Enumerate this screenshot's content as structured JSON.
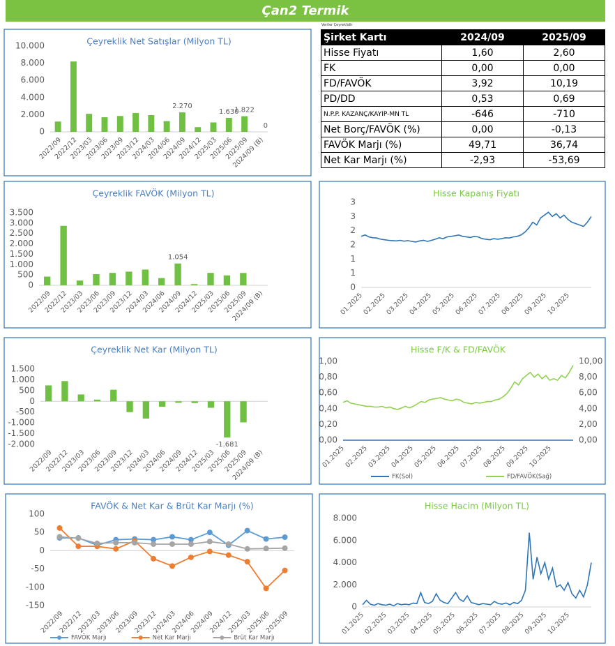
{
  "header": {
    "title": "Çan2 Termik"
  },
  "table": {
    "note": "Veriler Çeyreklidir",
    "columns": [
      "Şirket Kartı",
      "2024/09",
      "2025/09"
    ],
    "rows": [
      [
        "Hisse Fiyatı",
        "1,60",
        "2,60"
      ],
      [
        "FK",
        "0,00",
        "0,00"
      ],
      [
        "FD/FAVÖK",
        "3,92",
        "10,19"
      ],
      [
        "PD/DD",
        "0,53",
        "0,69"
      ],
      [
        "N.P.P. KAZANÇ/KAYIP-MN TL",
        "-646",
        "-710"
      ],
      [
        "Net Borç/FAVÖK (%)",
        "0,00",
        "-0,13"
      ],
      [
        "FAVÖK Marjı (%)",
        "49,71",
        "36,74"
      ],
      [
        "Net Kar Marjı (%)",
        "-2,93",
        "-53,69"
      ]
    ]
  },
  "chart_data": [
    {
      "type": "bar",
      "title": "Çeyreklik Net Satışlar (Milyon TL)",
      "color": "#70c043",
      "categories": [
        "2022/09",
        "2022/12",
        "2023/03",
        "2023/06",
        "2023/09",
        "2023/12",
        "2024/03",
        "2024/06",
        "2024/09",
        "2024/12",
        "2025/03",
        "2025/06",
        "2025/09",
        "2024/09 (B)"
      ],
      "values": [
        1200,
        8200,
        2100,
        1700,
        1850,
        2200,
        1950,
        1250,
        2270,
        550,
        1100,
        1630,
        1822,
        0
      ],
      "value_labels": [
        null,
        null,
        null,
        null,
        null,
        null,
        null,
        null,
        "2.270",
        null,
        null,
        "1.630",
        "1.822",
        "0"
      ],
      "ylim": [
        0,
        10000
      ],
      "yticks": [
        0,
        {
          "value": 2000,
          "label": "2.000"
        },
        {
          "value": 4000,
          "label": "4.000"
        },
        {
          "value": 6000,
          "label": "6.000"
        },
        {
          "value": 8000,
          "label": "8.000"
        },
        {
          "value": 10000,
          "label": "10.000"
        }
      ]
    },
    {
      "type": "bar",
      "title": "Çeyreklik FAVÖK (Milyon TL)",
      "color": "#70c043",
      "categories": [
        "2022/09",
        "2022/12",
        "2023/03",
        "2023/06",
        "2023/09",
        "2023/12",
        "2024/03",
        "2024/06",
        "2024/09",
        "2024/12",
        "2025/03",
        "2025/06",
        "2025/09",
        "2024/09 (B)"
      ],
      "values": [
        420,
        2870,
        230,
        540,
        600,
        660,
        760,
        350,
        1054,
        60,
        600,
        479,
        597,
        0
      ],
      "value_labels": [
        null,
        null,
        null,
        null,
        null,
        null,
        null,
        null,
        "1.054",
        null,
        null,
        null,
        null,
        null
      ],
      "ylim": [
        0,
        3500
      ],
      "yticks": [
        0,
        500,
        {
          "value": 1000,
          "label": "1.000"
        },
        {
          "value": 1500,
          "label": "1.500"
        },
        {
          "value": 2000,
          "label": "2.000"
        },
        {
          "value": 2500,
          "label": "2.500"
        },
        {
          "value": 3000,
          "label": "3.000"
        },
        {
          "value": 3500,
          "label": "3.500"
        }
      ]
    },
    {
      "type": "bar",
      "title": "Çeyreklik Net Kar (Milyon TL)",
      "color": "#70c043",
      "categories": [
        "2022/09",
        "2022/12",
        "2023/03",
        "2023/06",
        "2023/09",
        "2023/12",
        "2024/03",
        "2024/06",
        "2024/09",
        "2024/12",
        "2025/03",
        "2025/06",
        "2025/09",
        "2024/09 (B)"
      ],
      "values": [
        740,
        940,
        320,
        80,
        540,
        -500,
        -800,
        -250,
        -67,
        -80,
        -300,
        -1681,
        -978,
        0
      ],
      "value_labels": [
        null,
        null,
        null,
        null,
        null,
        null,
        null,
        null,
        null,
        null,
        null,
        "-1.681",
        null,
        null
      ],
      "ylim": [
        -2000,
        1500
      ],
      "yticks": [
        {
          "value": -2000,
          "label": "-2.000"
        },
        {
          "value": -1500,
          "label": "-1.500"
        },
        {
          "value": -1000,
          "label": "-1.000"
        },
        -500,
        0,
        500,
        {
          "value": 1000,
          "label": "1.000"
        },
        {
          "value": 1500,
          "label": "1.500"
        }
      ]
    },
    {
      "type": "line",
      "title": "Hisse Kapanış Fiyatı",
      "xtick_labels": [
        "01.2025",
        "02.2025",
        "03.2025",
        "04.2025",
        "05.2025",
        "06.2025",
        "07.2025",
        "08.2025",
        "09.2025",
        "10.2025"
      ],
      "series": [
        {
          "name": "Hisse Fiyatı",
          "color": "#2e75b6",
          "values": [
            1.8,
            1.85,
            1.78,
            1.75,
            1.74,
            1.7,
            1.68,
            1.66,
            1.65,
            1.64,
            1.66,
            1.63,
            1.65,
            1.62,
            1.6,
            1.64,
            1.66,
            1.62,
            1.66,
            1.7,
            1.75,
            1.72,
            1.78,
            1.8,
            1.82,
            1.85,
            1.8,
            1.78,
            1.76,
            1.8,
            1.78,
            1.72,
            1.7,
            1.68,
            1.72,
            1.7,
            1.72,
            1.75,
            1.74,
            1.78,
            1.8,
            1.85,
            1.95,
            2.1,
            2.3,
            2.2,
            2.45,
            2.55,
            2.65,
            2.5,
            2.6,
            2.45,
            2.55,
            2.4,
            2.3,
            2.25,
            2.2,
            2.15,
            2.3,
            2.5
          ]
        }
      ],
      "ylim": [
        0,
        3
      ],
      "yticks": [
        0,
        {
          "value": 0.5,
          "label": "1"
        },
        {
          "value": 1,
          "label": "1"
        },
        {
          "value": 1.5,
          "label": "2"
        },
        {
          "value": 2,
          "label": "2"
        },
        {
          "value": 2.5,
          "label": "3"
        },
        {
          "value": 3,
          "label": "3"
        }
      ]
    },
    {
      "type": "line",
      "title": "Hisse F/K & FD/FAVÖK",
      "xtick_labels": [
        "01.2025",
        "02.2025",
        "03.2025",
        "04.2025",
        "05.2025",
        "06.2025",
        "07.2025",
        "08.2025",
        "09.2025",
        "10.2025"
      ],
      "series": [
        {
          "name": "FK(Sol)",
          "color": "#2e75b6",
          "values": [
            0,
            0,
            0,
            0,
            0,
            0,
            0,
            0,
            0,
            0,
            0,
            0,
            0,
            0,
            0,
            0,
            0,
            0,
            0,
            0,
            0,
            0,
            0,
            0,
            0,
            0,
            0,
            0,
            0,
            0,
            0,
            0,
            0,
            0,
            0,
            0,
            0,
            0,
            0,
            0,
            0,
            0,
            0,
            0,
            0,
            0,
            0,
            0,
            0,
            0,
            0,
            0,
            0,
            0,
            0,
            0,
            0,
            0,
            0,
            0
          ]
        },
        {
          "name": "FD/FAVÖK(Sağ)",
          "color": "#92d050",
          "axis": "y2",
          "values": [
            4.8,
            5.0,
            4.7,
            4.6,
            4.5,
            4.4,
            4.3,
            4.3,
            4.2,
            4.2,
            4.3,
            4.1,
            4.2,
            4.0,
            3.9,
            4.1,
            4.3,
            4.1,
            4.3,
            4.6,
            4.9,
            4.8,
            5.1,
            5.2,
            5.3,
            5.4,
            5.2,
            5.1,
            5.0,
            5.2,
            5.1,
            4.8,
            4.7,
            4.6,
            4.8,
            4.7,
            4.8,
            4.9,
            4.9,
            5.1,
            5.2,
            5.5,
            5.9,
            6.6,
            7.4,
            7.0,
            7.8,
            8.2,
            8.6,
            8.0,
            8.4,
            7.8,
            8.2,
            7.6,
            7.8,
            7.6,
            8.2,
            7.9,
            8.6,
            9.5
          ]
        }
      ],
      "ylim": [
        0,
        1
      ],
      "yticks": [
        {
          "value": 0,
          "label": "0,00"
        },
        {
          "value": 0.2,
          "label": "0,20"
        },
        {
          "value": 0.4,
          "label": "0,40"
        },
        {
          "value": 0.6,
          "label": "0,60"
        },
        {
          "value": 0.8,
          "label": "0,80"
        },
        {
          "value": 1,
          "label": "1,00"
        }
      ],
      "y2lim": [
        0,
        10
      ],
      "y2ticks": [
        {
          "value": 0,
          "label": "0,00"
        },
        {
          "value": 2,
          "label": "2,00"
        },
        {
          "value": 4,
          "label": "4,00"
        },
        {
          "value": 6,
          "label": "6,00"
        },
        {
          "value": 8,
          "label": "8,00"
        },
        {
          "value": 10,
          "label": "10,00"
        }
      ]
    },
    {
      "type": "line",
      "title": "FAVÖK & Net Kar & Brüt Kar Marjı (%)",
      "markers": true,
      "categories": [
        "2022/09",
        "2022/12",
        "2023/03",
        "2023/06",
        "2023/09",
        "2023/12",
        "2024/03",
        "2024/06",
        "2024/09",
        "2024/12",
        "2025/03",
        "2025/06",
        "2025/09"
      ],
      "series": [
        {
          "name": "FAVÖK Marjı",
          "color": "#5b9bd5",
          "values": [
            35,
            35,
            15,
            30,
            32,
            30,
            38,
            30,
            50,
            15,
            55,
            32,
            37
          ]
        },
        {
          "name": "Net Kar Marjı",
          "color": "#ed7d31",
          "values": [
            62,
            12,
            12,
            5,
            27,
            -22,
            -42,
            -18,
            -2,
            -12,
            -30,
            -103,
            -54
          ]
        },
        {
          "name": "Brüt Kar Marjı",
          "color": "#a5a5a5",
          "values": [
            38,
            34,
            20,
            22,
            22,
            18,
            18,
            18,
            25,
            18,
            5,
            6,
            7
          ]
        }
      ],
      "ylim": [
        -150,
        100
      ],
      "yticks": [
        -150,
        -100,
        -50,
        0,
        50,
        100
      ]
    },
    {
      "type": "line",
      "title": "Hisse Hacim (Milyon TL)",
      "xtick_labels": [
        "01.2025",
        "02.2025",
        "03.2025",
        "04.2025",
        "05.2025",
        "06.2025",
        "07.2025",
        "08.2025",
        "09.2025",
        "10.2025"
      ],
      "series": [
        {
          "name": "Hisse Hacim",
          "color": "#2e75b6",
          "values": [
            200,
            600,
            250,
            150,
            300,
            200,
            150,
            250,
            100,
            300,
            200,
            250,
            200,
            350,
            300,
            1300,
            400,
            300,
            500,
            1200,
            600,
            400,
            300,
            800,
            1300,
            700,
            500,
            1000,
            400,
            300,
            200,
            300,
            250,
            200,
            500,
            300,
            250,
            350,
            200,
            400,
            300,
            600,
            1500,
            6700,
            2500,
            4500,
            3000,
            4000,
            2500,
            3500,
            1800,
            2000,
            1500,
            2200,
            1200,
            800,
            1500,
            900,
            2000,
            4000
          ]
        }
      ],
      "ylim": [
        0,
        8000
      ],
      "yticks": [
        0,
        {
          "value": 2000,
          "label": "2.000"
        },
        {
          "value": 4000,
          "label": "4.000"
        },
        {
          "value": 6000,
          "label": "6.000"
        },
        {
          "value": 8000,
          "label": "8.000"
        }
      ]
    }
  ]
}
